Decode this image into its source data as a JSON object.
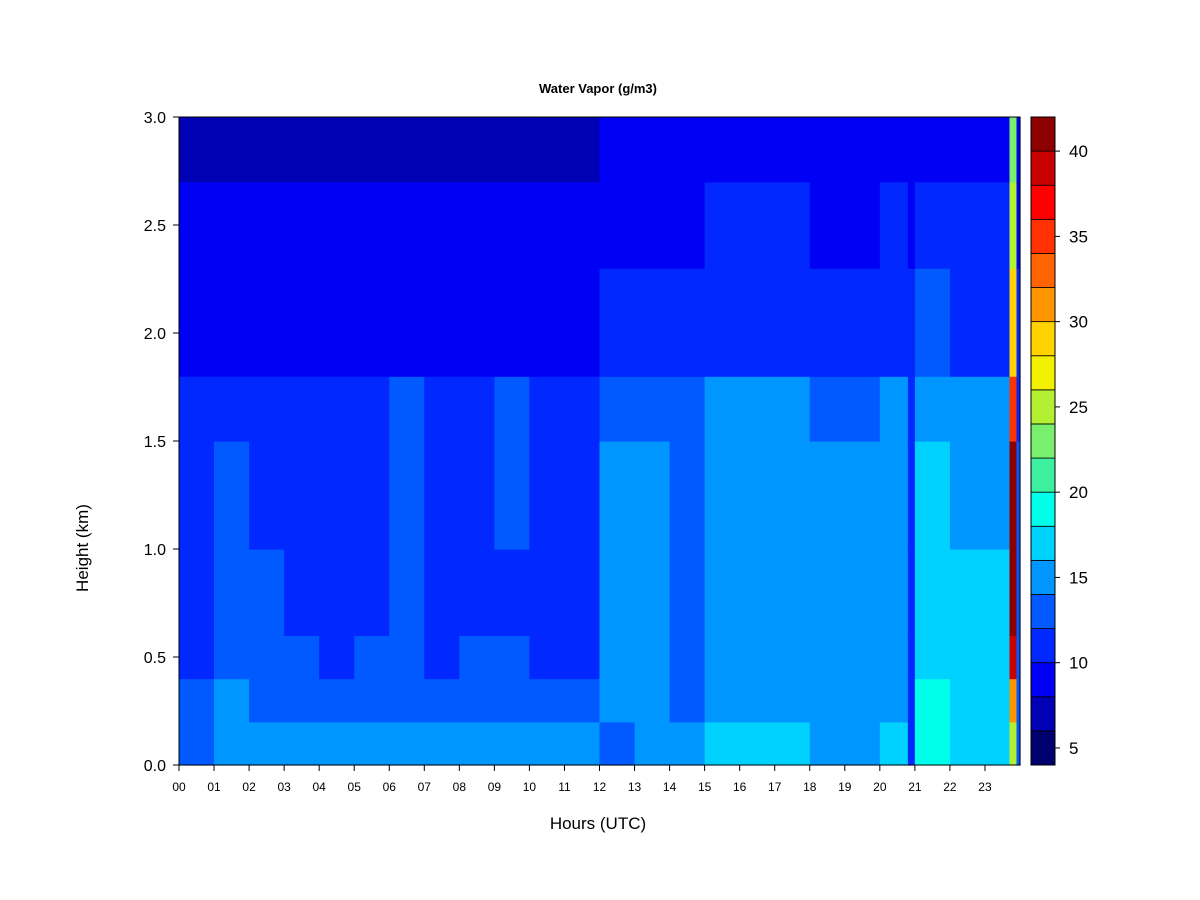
{
  "chart_data": {
    "type": "heatmap",
    "title": "Water Vapor (g/m3)",
    "xlabel": "Hours (UTC)",
    "ylabel": "Height (km)",
    "x_ticks": [
      "00",
      "01",
      "02",
      "03",
      "04",
      "05",
      "06",
      "07",
      "08",
      "09",
      "10",
      "11",
      "12",
      "13",
      "14",
      "15",
      "16",
      "17",
      "18",
      "19",
      "20",
      "21",
      "22",
      "23"
    ],
    "xlim": [
      0,
      24
    ],
    "y_ticks": [
      "0.0",
      "0.5",
      "1.0",
      "1.5",
      "2.0",
      "2.5",
      "3.0"
    ],
    "ylim": [
      0,
      3.0
    ],
    "colorbar": {
      "range": [
        4,
        42
      ],
      "levels": [
        4,
        6,
        8,
        10,
        12,
        14,
        16,
        18,
        20,
        22,
        24,
        26,
        28,
        30,
        32,
        34,
        36,
        38,
        40,
        42
      ],
      "colors": [
        "#00006e",
        "#0000b4",
        "#0000f5",
        "#0028ff",
        "#005aff",
        "#0096ff",
        "#00d2ff",
        "#00ffea",
        "#3cf0a0",
        "#78f06e",
        "#b4f032",
        "#f0f000",
        "#ffd200",
        "#ff9600",
        "#ff6400",
        "#ff3200",
        "#ff0000",
        "#c80000",
        "#8c0000"
      ],
      "tick_labels": [
        "5",
        "10",
        "15",
        "20",
        "25",
        "30",
        "35",
        "40"
      ],
      "tick_values": [
        5,
        10,
        15,
        20,
        25,
        30,
        35,
        40
      ]
    },
    "profile_heights_km": [
      0.0,
      0.2,
      0.4,
      0.6,
      1.0,
      1.5,
      1.8,
      2.3,
      2.7,
      3.0
    ],
    "time_hours": [
      0,
      1,
      2,
      3,
      4,
      5,
      6,
      7,
      8,
      9,
      10,
      11,
      12,
      13,
      14,
      15,
      16,
      17,
      18,
      19,
      20,
      20.8,
      21,
      22,
      23,
      23.7,
      23.9
    ],
    "values_g_m3": [
      [
        13,
        12,
        11,
        11,
        11,
        11,
        9,
        8,
        7,
        6
      ],
      [
        15,
        14,
        13,
        12,
        12,
        11,
        9,
        8,
        7,
        6
      ],
      [
        14,
        13,
        12,
        12,
        11,
        11,
        9,
        8,
        7,
        6
      ],
      [
        14,
        13,
        12,
        11,
        11,
        11,
        9,
        8,
        7,
        6
      ],
      [
        14,
        12,
        11,
        11,
        11,
        11,
        9,
        8,
        7,
        6
      ],
      [
        14,
        13,
        12,
        11,
        11,
        11,
        9,
        8,
        7,
        6
      ],
      [
        14,
        13,
        12,
        12,
        12,
        12,
        9,
        8,
        7,
        6
      ],
      [
        14,
        12,
        11,
        11,
        11,
        11,
        9,
        8,
        7,
        6
      ],
      [
        14,
        13,
        12,
        11,
        11,
        11,
        9,
        8,
        7,
        6
      ],
      [
        14,
        13,
        12,
        11,
        12,
        12,
        9,
        8,
        7,
        6
      ],
      [
        14,
        12,
        11,
        11,
        11,
        11,
        9,
        8,
        7,
        5
      ],
      [
        14,
        13,
        11,
        11,
        11,
        11,
        9,
        8,
        7,
        5
      ],
      [
        13,
        15,
        15,
        15,
        14,
        13,
        11,
        9,
        8,
        7
      ],
      [
        14,
        14,
        14,
        14,
        14,
        13,
        11,
        9,
        8,
        7
      ],
      [
        14,
        13,
        13,
        13,
        13,
        13,
        11,
        9,
        8,
        7
      ],
      [
        16,
        15,
        15,
        15,
        15,
        14,
        11,
        10,
        9,
        8
      ],
      [
        16,
        15,
        15,
        15,
        15,
        14,
        11,
        10,
        9,
        8
      ],
      [
        16,
        15,
        15,
        15,
        15,
        14,
        11,
        10,
        9,
        8
      ],
      [
        15,
        14,
        14,
        14,
        14,
        13,
        11,
        9,
        8,
        7
      ],
      [
        15,
        14,
        14,
        14,
        14,
        13,
        11,
        9,
        8,
        7
      ],
      [
        16,
        15,
        15,
        15,
        15,
        14,
        11,
        10,
        9,
        8
      ],
      [
        11,
        10,
        10,
        10,
        10,
        10,
        10,
        9,
        9,
        8
      ],
      [
        19,
        18,
        17,
        16,
        16,
        15,
        12,
        10,
        9,
        8
      ],
      [
        17,
        16,
        16,
        16,
        15,
        14,
        11,
        10,
        9,
        8
      ],
      [
        17,
        16,
        16,
        16,
        15,
        14,
        11,
        10,
        9,
        8
      ],
      [
        25,
        30,
        38,
        40,
        40,
        34,
        28,
        24,
        22,
        20
      ],
      [
        12,
        12,
        12,
        12,
        12,
        11,
        10,
        9,
        9,
        8
      ]
    ]
  }
}
